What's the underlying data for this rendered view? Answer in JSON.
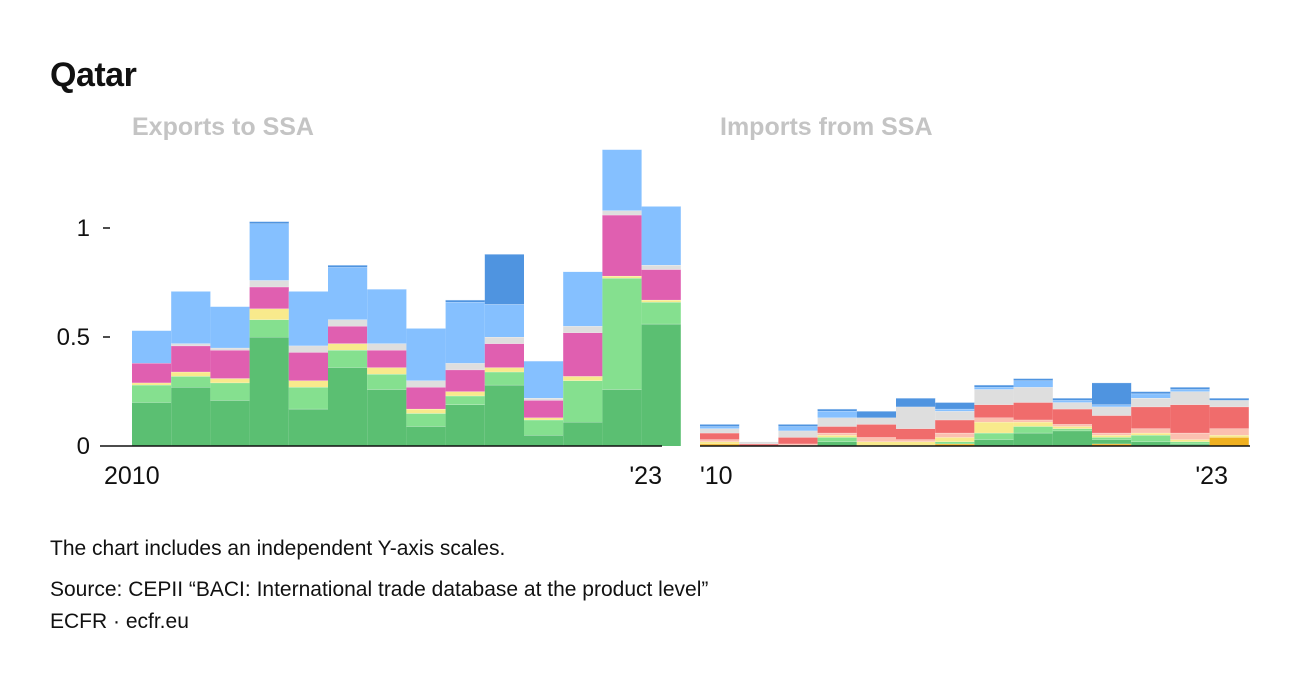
{
  "title": "Qatar",
  "footnote": "The chart includes an independent Y-axis scales.",
  "source": "Source: CEPII “BACI: International trade database at the product level”",
  "credit": "ECFR · ecfr.eu",
  "colors": {
    "green_dark": "#5bbf72",
    "green_light": "#85e08f",
    "yellow": "#f8ea8c",
    "pink": "#e05fb0",
    "grey": "#dedede",
    "blue_light": "#85c0ff",
    "blue_dark": "#4f94e0",
    "red": "#f06c6c",
    "orange": "#f0b020",
    "salmon": "#fbc0b0",
    "axis": "#111111"
  },
  "chart_data": [
    {
      "type": "bar",
      "stacked": true,
      "title": "Exports to SSA",
      "years": [
        2010,
        2011,
        2012,
        2013,
        2014,
        2015,
        2016,
        2017,
        2018,
        2019,
        2020,
        2021,
        2022,
        2023
      ],
      "tick_labels": [
        "2010",
        "'23"
      ],
      "y_ticks": [
        0,
        0.5,
        1
      ],
      "y_tick_labels": [
        "0",
        "0.5",
        "1"
      ],
      "ylim": [
        0,
        1.4
      ],
      "series": [
        {
          "name": "green_dark",
          "color_key": "green_dark",
          "values": [
            0.2,
            0.27,
            0.21,
            0.5,
            0.17,
            0.36,
            0.26,
            0.09,
            0.19,
            0.28,
            0.05,
            0.11,
            0.26,
            0.56
          ]
        },
        {
          "name": "green_light",
          "color_key": "green_light",
          "values": [
            0.08,
            0.05,
            0.08,
            0.08,
            0.1,
            0.08,
            0.07,
            0.06,
            0.04,
            0.06,
            0.07,
            0.19,
            0.51,
            0.1
          ]
        },
        {
          "name": "yellow",
          "color_key": "yellow",
          "values": [
            0.01,
            0.02,
            0.02,
            0.05,
            0.03,
            0.03,
            0.03,
            0.02,
            0.02,
            0.02,
            0.01,
            0.02,
            0.01,
            0.01
          ]
        },
        {
          "name": "pink",
          "color_key": "pink",
          "values": [
            0.09,
            0.12,
            0.13,
            0.1,
            0.13,
            0.08,
            0.08,
            0.1,
            0.1,
            0.11,
            0.08,
            0.2,
            0.28,
            0.14
          ]
        },
        {
          "name": "grey",
          "color_key": "grey",
          "values": [
            0.0,
            0.01,
            0.01,
            0.03,
            0.03,
            0.03,
            0.03,
            0.03,
            0.03,
            0.03,
            0.01,
            0.03,
            0.02,
            0.02
          ]
        },
        {
          "name": "blue_light",
          "color_key": "blue_light",
          "values": [
            0.15,
            0.24,
            0.19,
            0.26,
            0.25,
            0.24,
            0.25,
            0.24,
            0.28,
            0.15,
            0.17,
            0.25,
            0.28,
            0.27
          ]
        },
        {
          "name": "blue_dark",
          "color_key": "blue_dark",
          "values": [
            0.0,
            0.0,
            0.0,
            0.01,
            0.0,
            0.01,
            0.0,
            0.0,
            0.01,
            0.23,
            0.0,
            0.0,
            0.0,
            0.0
          ]
        }
      ]
    },
    {
      "type": "bar",
      "stacked": true,
      "title": "Imports from SSA",
      "years": [
        2010,
        2011,
        2012,
        2013,
        2014,
        2015,
        2016,
        2017,
        2018,
        2019,
        2020,
        2021,
        2022,
        2023
      ],
      "tick_labels": [
        "'10",
        "'23"
      ],
      "ylim": [
        0,
        1.4
      ],
      "series": [
        {
          "name": "orange",
          "color_key": "orange",
          "values": [
            0.01,
            0.0,
            0.0,
            0.0,
            0.0,
            0.0,
            0.01,
            0.0,
            0.0,
            0.0,
            0.01,
            0.0,
            0.0,
            0.04
          ]
        },
        {
          "name": "green_dark",
          "color_key": "green_dark",
          "values": [
            0.0,
            0.0,
            0.0,
            0.02,
            0.0,
            0.0,
            0.0,
            0.03,
            0.06,
            0.07,
            0.02,
            0.02,
            0.01,
            0.0
          ]
        },
        {
          "name": "green_light",
          "color_key": "green_light",
          "values": [
            0.0,
            0.0,
            0.0,
            0.02,
            0.0,
            0.0,
            0.01,
            0.03,
            0.03,
            0.01,
            0.01,
            0.03,
            0.01,
            0.0
          ]
        },
        {
          "name": "yellow",
          "color_key": "yellow",
          "values": [
            0.01,
            0.0,
            0.0,
            0.01,
            0.02,
            0.02,
            0.02,
            0.05,
            0.02,
            0.01,
            0.01,
            0.01,
            0.01,
            0.01
          ]
        },
        {
          "name": "salmon",
          "color_key": "salmon",
          "values": [
            0.01,
            0.0,
            0.01,
            0.01,
            0.02,
            0.01,
            0.02,
            0.02,
            0.01,
            0.01,
            0.01,
            0.02,
            0.03,
            0.03
          ]
        },
        {
          "name": "red",
          "color_key": "red",
          "values": [
            0.03,
            0.01,
            0.03,
            0.03,
            0.06,
            0.05,
            0.06,
            0.06,
            0.08,
            0.07,
            0.08,
            0.1,
            0.13,
            0.1
          ]
        },
        {
          "name": "grey",
          "color_key": "grey",
          "values": [
            0.02,
            0.01,
            0.03,
            0.04,
            0.03,
            0.1,
            0.04,
            0.07,
            0.07,
            0.03,
            0.04,
            0.04,
            0.06,
            0.03
          ]
        },
        {
          "name": "blue_light",
          "color_key": "blue_light",
          "values": [
            0.01,
            0.0,
            0.02,
            0.03,
            0.0,
            0.0,
            0.01,
            0.01,
            0.03,
            0.01,
            0.01,
            0.02,
            0.01,
            0.0
          ]
        },
        {
          "name": "blue_dark",
          "color_key": "blue_dark",
          "values": [
            0.01,
            0.0,
            0.01,
            0.01,
            0.03,
            0.04,
            0.03,
            0.01,
            0.01,
            0.01,
            0.1,
            0.01,
            0.01,
            0.01
          ]
        }
      ]
    }
  ]
}
